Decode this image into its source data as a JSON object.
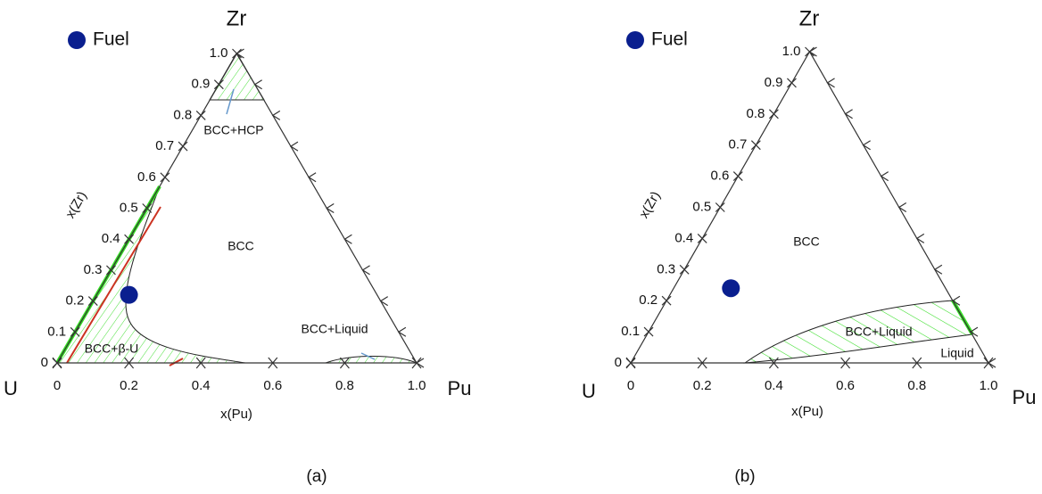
{
  "chart_data": [
    {
      "type": "ternary",
      "caption": "(a)",
      "top_label": "Zr",
      "left_label": "U",
      "right_label": "Pu",
      "xlabel": "x(Pu)",
      "ylabel": "x(Zr)",
      "xlim": [
        0,
        1
      ],
      "ylim": [
        0,
        1
      ],
      "xticks": [
        0,
        0.2,
        0.4,
        0.6,
        0.8,
        {
          "value": 1,
          "label": "1.0"
        }
      ],
      "yticks": [
        0,
        0.1,
        0.2,
        0.3,
        0.4,
        0.5,
        0.6,
        0.7,
        0.8,
        0.9,
        {
          "value": 1,
          "label": "1.0"
        }
      ],
      "series": [
        {
          "name": "Fuel",
          "color": "#0a1f8f",
          "x": [
            0.09
          ],
          "values": [
            0.22
          ]
        }
      ],
      "annotations": [
        "BCC",
        "BCC+HCP",
        "BCC+Liquid",
        "BCC+β-U"
      ]
    },
    {
      "type": "ternary",
      "caption": "(b)",
      "top_label": "Zr",
      "left_label": "U",
      "right_label": "Pu",
      "xlabel": "x(Pu)",
      "ylabel": "x(Zr)",
      "xlim": [
        0,
        1
      ],
      "ylim": [
        0,
        1
      ],
      "xticks": [
        0,
        0.2,
        0.4,
        0.6,
        0.8,
        {
          "value": 1,
          "label": "1.0"
        }
      ],
      "yticks": [
        0,
        0.1,
        0.2,
        0.3,
        0.4,
        0.5,
        0.6,
        0.7,
        0.8,
        0.9,
        {
          "value": 1,
          "label": "1.0"
        }
      ],
      "series": [
        {
          "name": "Fuel",
          "color": "#0a1f8f",
          "x": [
            0.16
          ],
          "values": [
            0.24
          ]
        }
      ],
      "annotations": [
        "BCC",
        "BCC+Liquid",
        "Liquid"
      ]
    }
  ]
}
